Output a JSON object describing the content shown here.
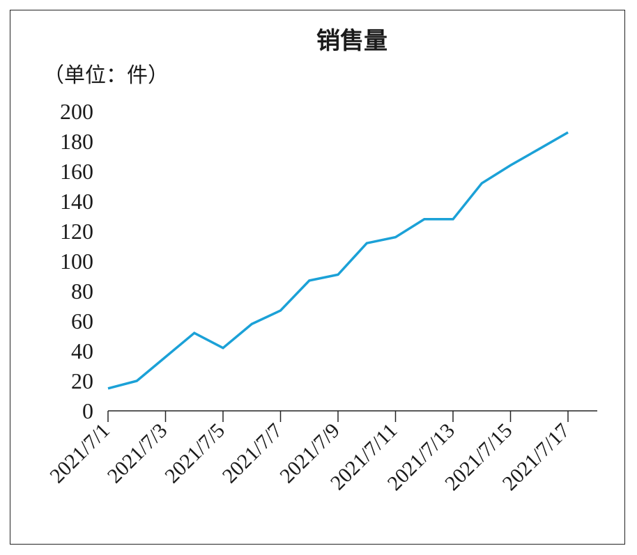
{
  "chart_data": {
    "type": "line",
    "title": "销售量",
    "ylabel": "（单位：件）",
    "xlabel": "",
    "ylim": [
      0,
      200
    ],
    "yticks": [
      0,
      20,
      40,
      60,
      80,
      100,
      120,
      140,
      160,
      180,
      200
    ],
    "xtick_labels": [
      "2021/7/1",
      "2021/7/3",
      "2021/7/5",
      "2021/7/7",
      "2021/7/9",
      "2021/7/11",
      "2021/7/13",
      "2021/7/15",
      "2021/7/17"
    ],
    "x_range": [
      1,
      17
    ],
    "grid": false,
    "series": [
      {
        "name": "销售量",
        "color": "#1ba1d7",
        "x": [
          1,
          2,
          3,
          4,
          5,
          6,
          7,
          8,
          9,
          10,
          11,
          12,
          13,
          14,
          15,
          16,
          17
        ],
        "values": [
          15,
          20,
          36,
          52,
          42,
          58,
          67,
          87,
          91,
          112,
          116,
          128,
          128,
          152,
          164,
          175,
          186
        ]
      }
    ]
  }
}
